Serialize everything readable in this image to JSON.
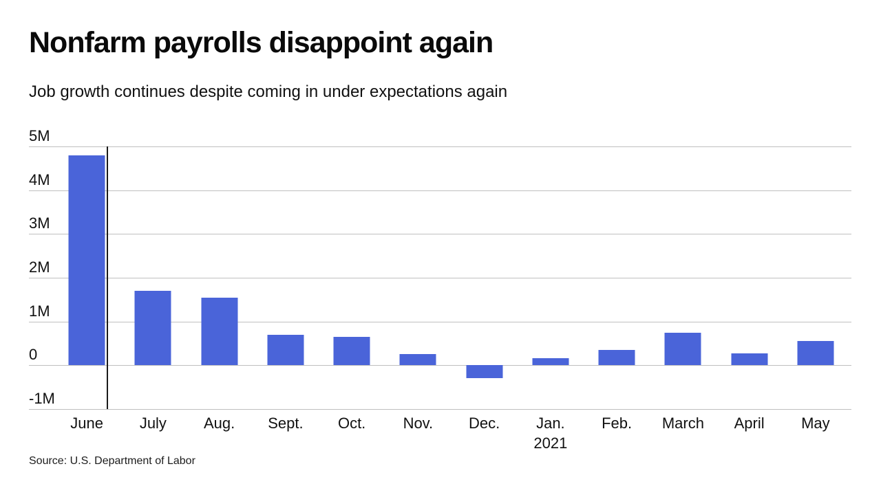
{
  "header": {
    "title": "Nonfarm payrolls disappoint again",
    "subtitle": "Job growth continues despite coming in under expectations again"
  },
  "chart_data": {
    "type": "bar",
    "title": "Nonfarm payrolls disappoint again",
    "subtitle": "Job growth continues despite coming in under expectations again",
    "categories": [
      "June",
      "July",
      "Aug.",
      "Sept.",
      "Oct.",
      "Nov.",
      "Dec.",
      "Jan.\n2021",
      "Feb.",
      "March",
      "April",
      "May"
    ],
    "values": [
      4.8,
      1.7,
      1.55,
      0.7,
      0.65,
      0.25,
      -0.3,
      0.17,
      0.35,
      0.75,
      0.27,
      0.55
    ],
    "unit": "millions of jobs (monthly change)",
    "y_ticks": [
      "5M",
      "4M",
      "3M",
      "2M",
      "1M",
      "0",
      "-1M"
    ],
    "y_tick_values": [
      5,
      4,
      3,
      2,
      1,
      0,
      -1
    ],
    "ylim": [
      -1,
      5
    ],
    "xlabel": "",
    "ylabel": "",
    "grid": true,
    "legend": false,
    "bar_color": "#4a64d9",
    "gridline_color": "#bfbfbf",
    "axis_line_color": "#1a1a1a"
  },
  "footer": {
    "source": "Source: U.S. Department of Labor"
  }
}
